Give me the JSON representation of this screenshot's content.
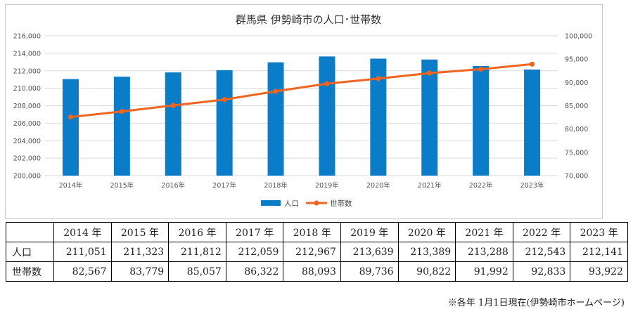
{
  "chart_data": {
    "type": "bar+line",
    "title": "群馬県 伊勢崎市の人口･世帯数",
    "categories": [
      "2014年",
      "2015年",
      "2016年",
      "2017年",
      "2018年",
      "2019年",
      "2020年",
      "2021年",
      "2022年",
      "2023年"
    ],
    "series": [
      {
        "name": "人口",
        "type": "bar",
        "axis": "left",
        "color": "#0a7cc8",
        "values": [
          211051,
          211323,
          211812,
          212059,
          212967,
          213639,
          213389,
          213288,
          212543,
          212141
        ]
      },
      {
        "name": "世帯数",
        "type": "line",
        "axis": "right",
        "color": "#f0641e",
        "values": [
          82567,
          83779,
          85057,
          86322,
          88093,
          89736,
          90822,
          91992,
          92833,
          93922
        ]
      }
    ],
    "y_left": {
      "min": 200000,
      "max": 216000,
      "step": 2000,
      "ticks": [
        "200,000",
        "202,000",
        "204,000",
        "206,000",
        "208,000",
        "210,000",
        "212,000",
        "214,000",
        "216,000"
      ]
    },
    "y_right": {
      "min": 70000,
      "max": 100000,
      "step": 5000,
      "ticks": [
        "70,000",
        "75,000",
        "80,000",
        "85,000",
        "90,000",
        "95,000",
        "100,000"
      ]
    },
    "grid": true,
    "legend": "bottom"
  },
  "table": {
    "headers": [
      "",
      "2014 年",
      "2015 年",
      "2016 年",
      "2017 年",
      "2018 年",
      "2019 年",
      "2020 年",
      "2021 年",
      "2022 年",
      "2023 年"
    ],
    "rows": [
      {
        "label": "人口",
        "cells": [
          "211,051",
          "211,323",
          "211,812",
          "212,059",
          "212,967",
          "213,639",
          "213,389",
          "213,288",
          "212,543",
          "212,141"
        ]
      },
      {
        "label": "世帯数",
        "cells": [
          "82,567",
          "83,779",
          "85,057",
          "86,322",
          "88,093",
          "89,736",
          "90,822",
          "91,992",
          "92,833",
          "93,922"
        ]
      }
    ]
  },
  "footnote": "※各年 1月1日現在(伊勢崎市ホームページ)"
}
